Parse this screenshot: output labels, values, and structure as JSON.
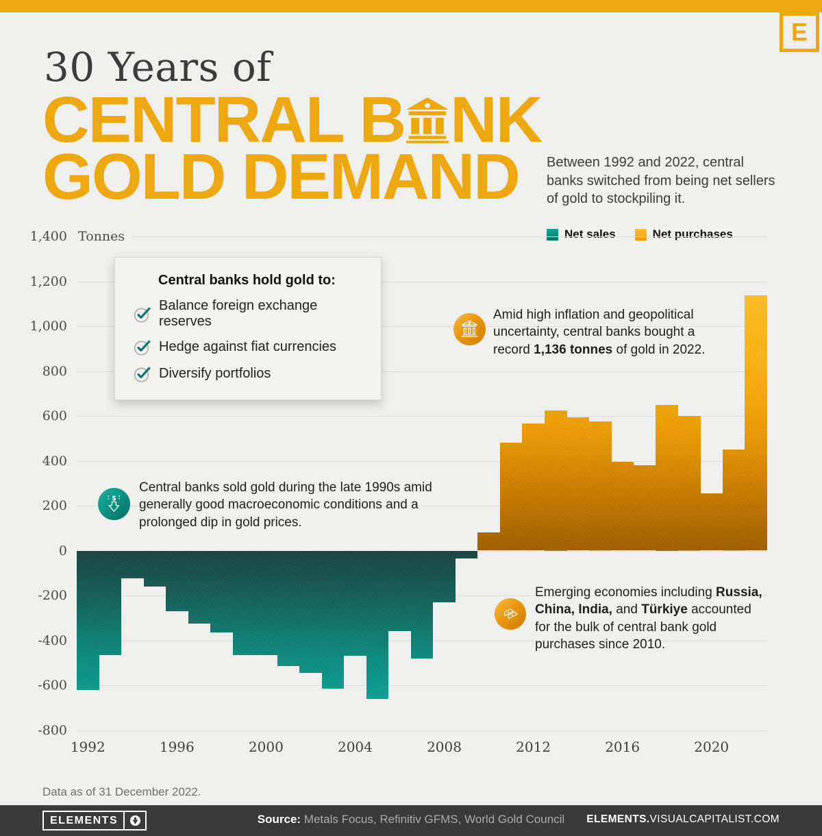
{
  "page": {
    "logo_letter": "E",
    "title_line1": "30 Years of",
    "title_line2_pre": "CENTRAL B",
    "title_line2_post": "NK",
    "title_line3": "GOLD DEMAND",
    "subtitle": "Between 1992 and 2022, central banks switched from being net sellers of gold to stockpiling it."
  },
  "colors": {
    "brand_gold": "#EDA70F",
    "background": "#EFEFED",
    "net_sales_teal": "#0BA495",
    "net_purchases_gold": "#F5A81C",
    "grid": "#DEDEDC",
    "footer_bar": "#3A3A3A"
  },
  "legend": [
    {
      "label": "Net sales"
    },
    {
      "label": "Net purchases"
    }
  ],
  "callout": {
    "title": "Central banks hold gold to:",
    "items": [
      "Balance foreign exchange reserves",
      "Hedge against fiat currencies",
      "Diversify portfolios"
    ]
  },
  "annotations": {
    "record": {
      "p1": "Amid high inflation and geopolitical uncertainty, central banks bought a record ",
      "b1": "1,136 tonnes",
      "p2": " of gold in 2022."
    },
    "sales": {
      "text": "Central banks sold gold during the late 1990s amid generally good macroeconomic conditions and a prolonged dip in gold prices."
    },
    "emerging": {
      "p1": "Emerging economies including ",
      "b1": "Russia, China, India,",
      "p2": " and ",
      "b2": "Türkiye",
      "p3": " accounted for the bulk of central bank gold purchases since 2010."
    }
  },
  "footer": {
    "note": "Data as of 31 December 2022.",
    "brand": "ELEMENTS",
    "source_label": "Source:",
    "source_text": " Metals Focus, Refinitiv GFMS, World Gold Council",
    "site_bold": "ELEMENTS.",
    "site_rest": "VISUALCAPITALIST.COM"
  },
  "chart_data": {
    "type": "bar",
    "title": "30 Years of Central Bank Gold Demand",
    "ylabel": "Tonnes",
    "unit": "tonnes",
    "x": [
      1992,
      1993,
      1994,
      1995,
      1996,
      1997,
      1998,
      1999,
      2000,
      2001,
      2002,
      2003,
      2004,
      2005,
      2006,
      2007,
      2008,
      2009,
      2010,
      2011,
      2012,
      2013,
      2014,
      2015,
      2016,
      2017,
      2018,
      2019,
      2020,
      2021,
      2022
    ],
    "values": [
      -620,
      -465,
      -125,
      -160,
      -270,
      -325,
      -365,
      -465,
      -465,
      -515,
      -545,
      -615,
      -470,
      -660,
      -360,
      -480,
      -230,
      -35,
      80,
      480,
      565,
      625,
      595,
      575,
      395,
      380,
      650,
      600,
      255,
      450,
      1136
    ],
    "series_legend": {
      "negative": "Net sales",
      "positive": "Net purchases"
    },
    "ylim": [
      -800,
      1400
    ],
    "ytick_step": 200,
    "xticks": [
      1992,
      1996,
      2000,
      2004,
      2008,
      2012,
      2016,
      2020
    ],
    "grid": true,
    "legend_position": "top-right",
    "highlight": {
      "year": 2022,
      "value": 1136
    }
  }
}
